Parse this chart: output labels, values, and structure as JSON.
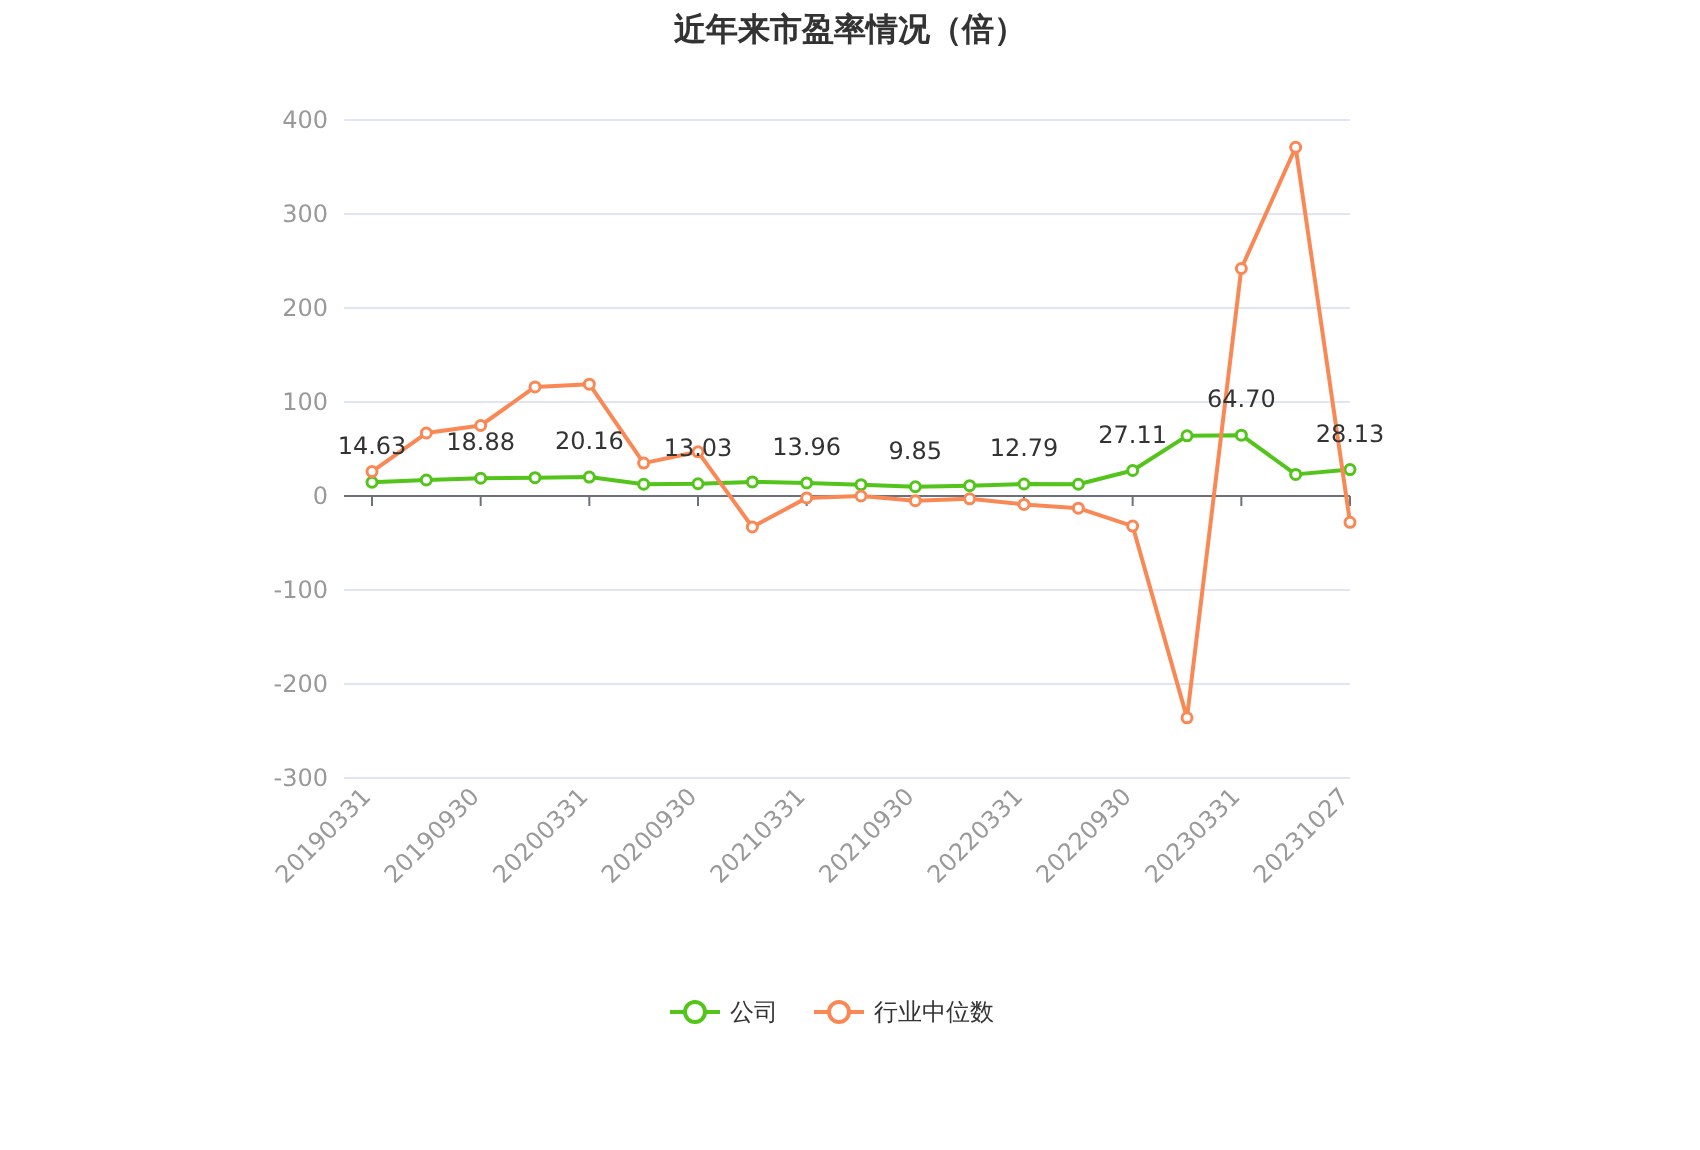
{
  "chart_data": {
    "type": "line",
    "title": "近年来市盈率情况（倍）",
    "categories": [
      "20190331",
      null,
      "20190930",
      null,
      "20200331",
      null,
      "20200930",
      null,
      "20210331",
      null,
      "20210930",
      null,
      "20220331",
      null,
      "20220930",
      null,
      "20230331",
      null,
      "20231027"
    ],
    "series": [
      {
        "name": "公司",
        "color": "#52c41a",
        "values": [
          14.63,
          17,
          18.88,
          19.5,
          20.16,
          12.5,
          13.03,
          15,
          13.96,
          12,
          9.85,
          11,
          12.79,
          12.5,
          27.11,
          64,
          64.7,
          23,
          28.13
        ],
        "value_labels": [
          "14.63",
          null,
          "18.88",
          null,
          "20.16",
          null,
          "13.03",
          null,
          "13.96",
          null,
          "9.85",
          null,
          "12.79",
          null,
          "27.11",
          null,
          "64.70",
          null,
          "28.13"
        ]
      },
      {
        "name": "行业中位数",
        "color": "#fa8855",
        "values": [
          26,
          67,
          75,
          116,
          119,
          35,
          47,
          -33,
          -2,
          0,
          -5,
          -3,
          -9,
          -13,
          -32,
          -236,
          242,
          371,
          -28
        ]
      }
    ],
    "ylim": [
      -300,
      400
    ],
    "yticks": [
      -300,
      -200,
      -100,
      0,
      100,
      200,
      300,
      400
    ],
    "grid": "y",
    "legend": "bottom",
    "marker": "circle",
    "line_style": "solid"
  }
}
